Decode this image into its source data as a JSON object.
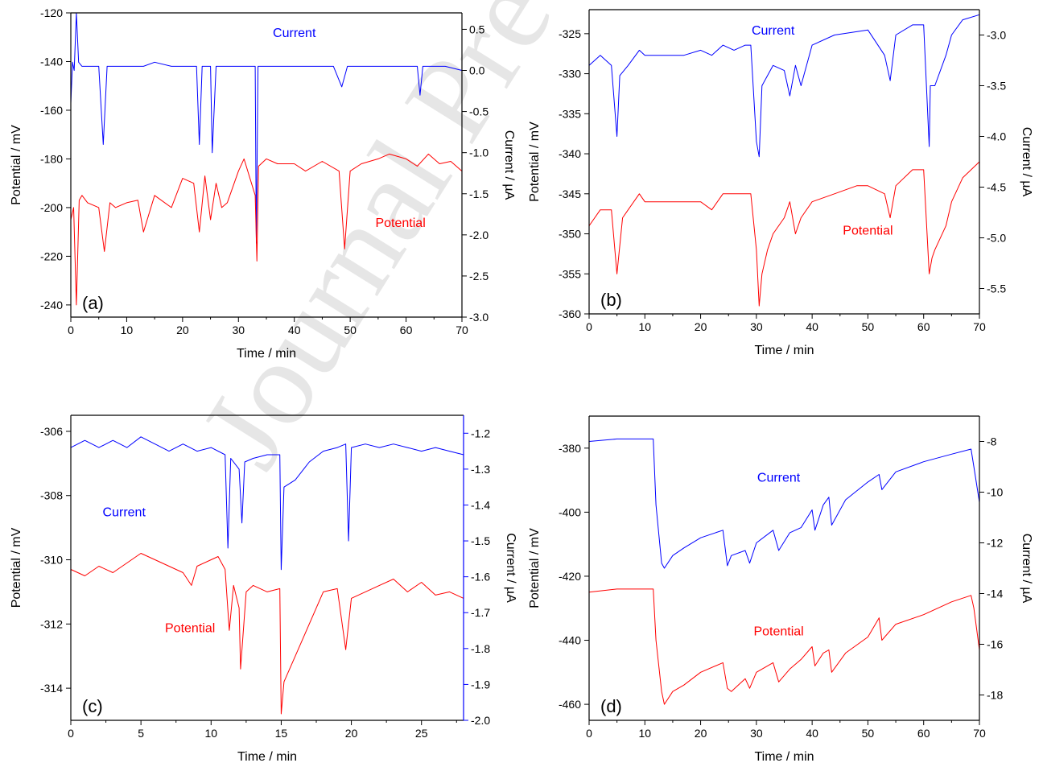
{
  "figure": {
    "watermark": "Journal Pre-proof",
    "colors": {
      "current": "#0000ff",
      "potential": "#ff0000",
      "axis": "#000000",
      "watermark": "#d2d2d2"
    }
  },
  "chart_data": [
    {
      "type": "line",
      "panel_label": "(a)",
      "xlabel": "Time  /  min",
      "ylabel_left": "Potential  /  mV",
      "ylabel_right": "Current  /  µA",
      "xlim": [
        0,
        70
      ],
      "ylim_left": [
        -245,
        -120
      ],
      "ylim_right": [
        -3.0,
        0.7
      ],
      "xticks": [
        0,
        10,
        20,
        30,
        40,
        50,
        60,
        70
      ],
      "yticks_left": [
        -240,
        -220,
        -200,
        -180,
        -160,
        -140,
        -120
      ],
      "yticks_right": [
        -3.0,
        -2.5,
        -2.0,
        -1.5,
        -1.0,
        -0.5,
        0.0,
        0.5
      ],
      "right_axis_color": "#000000",
      "annotations": [
        {
          "text": "Current",
          "color": "#0000ff",
          "x": 40,
          "y_axis": "left",
          "y": -128
        },
        {
          "text": "Potential",
          "color": "#ff0000",
          "x": 59,
          "y_axis": "left",
          "y": -206
        }
      ],
      "series": [
        {
          "name": "Current",
          "axis": "right",
          "color": "#0000ff",
          "x": [
            0,
            0.3,
            0.6,
            1.0,
            1.4,
            2,
            3,
            5,
            5.8,
            6.5,
            10,
            13,
            15,
            18,
            20,
            22.5,
            23,
            23.5,
            25,
            25.3,
            26,
            28,
            30,
            32,
            33,
            33.2,
            33.5,
            35,
            40,
            45,
            47,
            48.5,
            49.5,
            51,
            55,
            60,
            62,
            62.5,
            63,
            65,
            67,
            70
          ],
          "y": [
            -0.4,
            0.1,
            0.0,
            0.7,
            0.1,
            0.05,
            0.05,
            0.05,
            -0.9,
            0.05,
            0.05,
            0.05,
            0.1,
            0.05,
            0.05,
            0.05,
            -0.9,
            0.05,
            0.05,
            -1.0,
            0.05,
            0.05,
            0.05,
            0.05,
            0.05,
            -2.1,
            0.05,
            0.05,
            0.05,
            0.05,
            0.05,
            -0.2,
            0.05,
            0.05,
            0.05,
            0.05,
            0.05,
            -0.3,
            0.05,
            0.05,
            0.05,
            0.0
          ]
        },
        {
          "name": "Potential",
          "axis": "left",
          "color": "#ff0000",
          "x": [
            0,
            0.5,
            1,
            1.5,
            2,
            3,
            5,
            6,
            7,
            8,
            10,
            12,
            13,
            15,
            18,
            20,
            22,
            23,
            24,
            25,
            26,
            27,
            28,
            30,
            31,
            33,
            33.3,
            33.6,
            35,
            37,
            40,
            42,
            45,
            48,
            49,
            50,
            52,
            55,
            57,
            60,
            62,
            64,
            66,
            68,
            70
          ],
          "y": [
            -205,
            -200,
            -240,
            -197,
            -195,
            -198,
            -200,
            -218,
            -198,
            -200,
            -198,
            -197,
            -210,
            -195,
            -200,
            -188,
            -190,
            -210,
            -187,
            -205,
            -190,
            -200,
            -198,
            -185,
            -180,
            -195,
            -222,
            -183,
            -180,
            -182,
            -182,
            -185,
            -181,
            -185,
            -217,
            -185,
            -182,
            -180,
            -178,
            -180,
            -183,
            -178,
            -182,
            -181,
            -185
          ]
        }
      ]
    },
    {
      "type": "line",
      "panel_label": "(b)",
      "xlabel": "Time  /  min",
      "ylabel_left": "Potential  /  mV",
      "ylabel_right": "Current  /  µA",
      "xlim": [
        0,
        70
      ],
      "ylim_left": [
        -360,
        -322
      ],
      "ylim_right": [
        -5.75,
        -2.75
      ],
      "xticks": [
        0,
        10,
        20,
        30,
        40,
        50,
        60,
        70
      ],
      "yticks_left": [
        -360,
        -355,
        -350,
        -345,
        -340,
        -335,
        -330,
        -325
      ],
      "yticks_right": [
        -5.5,
        -5.0,
        -4.5,
        -4.0,
        -3.5,
        -3.0
      ],
      "right_axis_color": "#000000",
      "annotations": [
        {
          "text": "Current",
          "color": "#0000ff",
          "x": 33,
          "y_axis": "left",
          "y": -324.5
        },
        {
          "text": "Potential",
          "color": "#ff0000",
          "x": 50,
          "y_axis": "left",
          "y": -349.5
        }
      ],
      "series": [
        {
          "name": "Current",
          "axis": "right",
          "color": "#0000ff",
          "x": [
            0,
            2,
            4,
            5,
            5.5,
            7,
            9,
            10,
            14,
            17,
            20,
            22,
            24,
            26,
            28,
            29,
            30,
            30.5,
            31,
            32,
            33,
            35,
            36,
            37,
            38,
            40,
            44,
            50,
            53,
            54,
            55,
            58,
            60,
            61,
            61.2,
            62,
            64,
            65,
            67,
            70
          ],
          "y": [
            -3.3,
            -3.2,
            -3.3,
            -4.0,
            -3.4,
            -3.3,
            -3.15,
            -3.2,
            -3.2,
            -3.2,
            -3.15,
            -3.2,
            -3.1,
            -3.15,
            -3.1,
            -3.1,
            -4.05,
            -4.2,
            -3.5,
            -3.4,
            -3.3,
            -3.35,
            -3.6,
            -3.3,
            -3.5,
            -3.1,
            -3.0,
            -2.95,
            -3.2,
            -3.45,
            -3.0,
            -2.9,
            -2.9,
            -4.1,
            -3.5,
            -3.5,
            -3.2,
            -3.0,
            -2.85,
            -2.8
          ]
        },
        {
          "name": "Potential",
          "axis": "left",
          "color": "#ff0000",
          "x": [
            0,
            2,
            4,
            5,
            6,
            7,
            9,
            10,
            14,
            18,
            20,
            22,
            24,
            28,
            29,
            30,
            30.5,
            31,
            32,
            33,
            35,
            36,
            37,
            38,
            40,
            44,
            48,
            50,
            53,
            54,
            55,
            58,
            60,
            61,
            61.5,
            62,
            64,
            65,
            67,
            70
          ],
          "y": [
            -349,
            -347,
            -347,
            -355,
            -348,
            -347,
            -345,
            -346,
            -346,
            -346,
            -346,
            -347,
            -345,
            -345,
            -345,
            -352,
            -359,
            -355,
            -352,
            -350,
            -348,
            -346,
            -350,
            -348,
            -346,
            -345,
            -344,
            -344,
            -345,
            -348,
            -344,
            -342,
            -342,
            -355,
            -353,
            -352,
            -349,
            -346,
            -343,
            -341
          ]
        }
      ]
    },
    {
      "type": "line",
      "panel_label": "(c)",
      "xlabel": "Time  /  min",
      "ylabel_left": "Potential  /  mV",
      "ylabel_right": "Current  /  µA",
      "xlim": [
        0,
        28
      ],
      "ylim_left": [
        -315,
        -305.5
      ],
      "ylim_right": [
        -2.0,
        -1.15
      ],
      "xticks": [
        0,
        5,
        10,
        15,
        20,
        25
      ],
      "yticks_left": [
        -314,
        -312,
        -310,
        -308,
        -306
      ],
      "yticks_right": [
        -2.0,
        -1.9,
        -1.8,
        -1.7,
        -1.6,
        -1.5,
        -1.4,
        -1.3,
        -1.2
      ],
      "right_axis_color": "#0000ff",
      "annotations": [
        {
          "text": "Current",
          "color": "#0000ff",
          "x": 3.8,
          "y_axis": "left",
          "y": -308.5
        },
        {
          "text": "Potential",
          "color": "#ff0000",
          "x": 8.5,
          "y_axis": "left",
          "y": -312.1
        }
      ],
      "series": [
        {
          "name": "Current",
          "axis": "right",
          "color": "#0000ff",
          "x": [
            0,
            1,
            2,
            3,
            4,
            5,
            6,
            7,
            8,
            9,
            10,
            11,
            11.2,
            11.4,
            12,
            12.2,
            12.4,
            13,
            14,
            14.9,
            15,
            15.2,
            16,
            17,
            18,
            19,
            19.6,
            19.8,
            20,
            21,
            22,
            23,
            24,
            25,
            26,
            27,
            28
          ],
          "y": [
            -1.24,
            -1.22,
            -1.24,
            -1.22,
            -1.24,
            -1.21,
            -1.23,
            -1.25,
            -1.23,
            -1.25,
            -1.24,
            -1.26,
            -1.52,
            -1.27,
            -1.3,
            -1.45,
            -1.28,
            -1.27,
            -1.26,
            -1.26,
            -1.58,
            -1.35,
            -1.33,
            -1.28,
            -1.25,
            -1.24,
            -1.23,
            -1.5,
            -1.24,
            -1.23,
            -1.24,
            -1.23,
            -1.24,
            -1.25,
            -1.24,
            -1.25,
            -1.26
          ]
        },
        {
          "name": "Potential",
          "axis": "left",
          "color": "#ff0000",
          "x": [
            0,
            1,
            2,
            3,
            4,
            5,
            6,
            7,
            8,
            8.6,
            9,
            10,
            10.5,
            11,
            11.3,
            11.6,
            12,
            12.1,
            12.5,
            13,
            14,
            14.9,
            15,
            15.2,
            16,
            17,
            18,
            19,
            19.6,
            20,
            21,
            22,
            23,
            24,
            25,
            26,
            27,
            28
          ],
          "y": [
            -310.3,
            -310.5,
            -310.2,
            -310.4,
            -310.1,
            -309.8,
            -310.0,
            -310.2,
            -310.4,
            -310.8,
            -310.2,
            -310.0,
            -309.9,
            -310.3,
            -312.2,
            -310.8,
            -311.5,
            -313.4,
            -311.0,
            -310.8,
            -311.0,
            -310.9,
            -314.8,
            -313.8,
            -313.0,
            -312.0,
            -311.0,
            -310.9,
            -312.8,
            -311.2,
            -311.0,
            -310.8,
            -310.6,
            -311.0,
            -310.7,
            -311.1,
            -311.0,
            -311.2
          ]
        }
      ]
    },
    {
      "type": "line",
      "panel_label": "(d)",
      "xlabel": "Time  /  min",
      "ylabel_left": "Potential  /  mV",
      "ylabel_right": "Current  /  µA",
      "xlim": [
        0,
        70
      ],
      "ylim_left": [
        -465,
        -370
      ],
      "ylim_right": [
        -19,
        -7
      ],
      "xticks": [
        0,
        10,
        20,
        30,
        40,
        50,
        60,
        70
      ],
      "yticks_left": [
        -460,
        -440,
        -420,
        -400,
        -380
      ],
      "yticks_right": [
        -18,
        -16,
        -14,
        -12,
        -10,
        -8
      ],
      "right_axis_color": "#000000",
      "annotations": [
        {
          "text": "Current",
          "color": "#0000ff",
          "x": 34,
          "y_axis": "left",
          "y": -389
        },
        {
          "text": "Potential",
          "color": "#ff0000",
          "x": 34,
          "y_axis": "left",
          "y": -437
        }
      ],
      "series": [
        {
          "name": "Current",
          "axis": "right",
          "color": "#0000ff",
          "x": [
            0,
            5,
            10,
            11.5,
            12,
            13,
            13.5,
            15,
            17,
            20,
            24,
            24.8,
            25.5,
            28,
            28.8,
            30,
            33,
            34,
            36,
            38,
            40,
            40.5,
            42,
            43,
            43.5,
            46,
            50,
            52,
            52.5,
            55,
            60,
            65,
            68.5,
            69,
            70
          ],
          "y": [
            -8.0,
            -7.9,
            -7.9,
            -7.9,
            -10.5,
            -12.8,
            -13.0,
            -12.5,
            -12.2,
            -11.8,
            -11.5,
            -12.9,
            -12.5,
            -12.3,
            -12.8,
            -12.0,
            -11.5,
            -12.3,
            -11.6,
            -11.4,
            -10.7,
            -11.5,
            -10.5,
            -10.2,
            -11.3,
            -10.3,
            -9.6,
            -9.3,
            -9.9,
            -9.2,
            -8.8,
            -8.5,
            -8.3,
            -9.0,
            -10.4
          ]
        },
        {
          "name": "Potential",
          "axis": "left",
          "color": "#ff0000",
          "x": [
            0,
            5,
            10,
            11.5,
            12,
            13,
            13.5,
            15,
            17,
            20,
            24,
            24.8,
            25.5,
            28,
            28.8,
            30,
            33,
            34,
            36,
            38,
            40,
            40.5,
            42,
            43,
            43.5,
            46,
            50,
            52,
            52.5,
            55,
            60,
            65,
            68.5,
            69,
            70
          ],
          "y": [
            -425,
            -424,
            -424,
            -424,
            -440,
            -456,
            -460,
            -456,
            -454,
            -450,
            -447,
            -455,
            -456,
            -452,
            -455,
            -450,
            -447,
            -453,
            -449,
            -446,
            -442,
            -448,
            -444,
            -443,
            -450,
            -444,
            -439,
            -433,
            -440,
            -435,
            -432,
            -428,
            -426,
            -430,
            -443
          ]
        }
      ]
    }
  ]
}
